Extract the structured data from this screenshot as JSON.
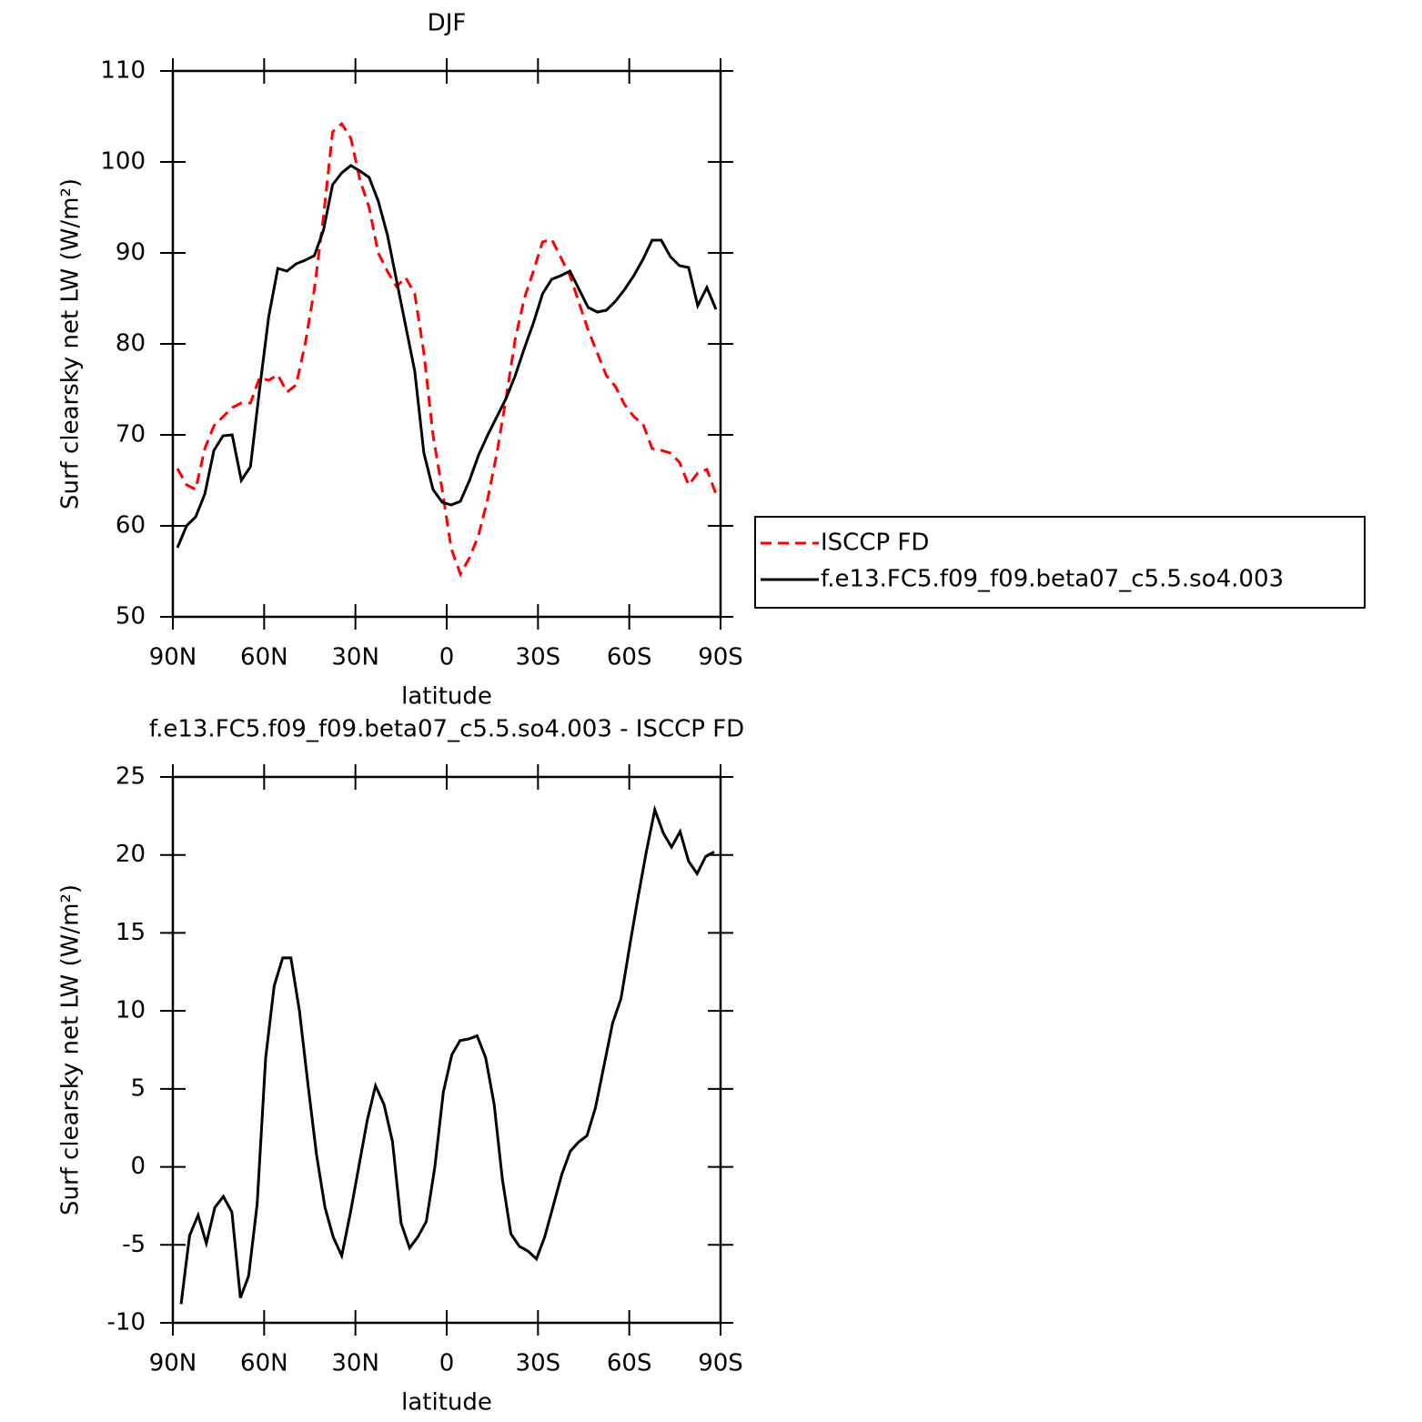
{
  "chart_data": [
    {
      "type": "line",
      "title": "DJF",
      "x_label": "latitude",
      "y_label": "Surf clearsky net LW (W/m²)",
      "x": [
        88.5,
        85.5,
        82.5,
        79.5,
        76.5,
        73.5,
        70.5,
        67.5,
        64.5,
        61.5,
        58.5,
        55.5,
        52.5,
        49.5,
        46.5,
        43.5,
        40.5,
        37.5,
        34.5,
        31.5,
        28.5,
        25.5,
        22.5,
        19.5,
        16.5,
        13.5,
        10.5,
        7.5,
        4.5,
        1.5,
        -1.5,
        -4.5,
        -7.5,
        -10.5,
        -13.5,
        -16.5,
        -19.5,
        -22.5,
        -25.5,
        -28.5,
        -31.5,
        -34.5,
        -37.5,
        -40.5,
        -43.5,
        -46.5,
        -49.5,
        -52.5,
        -55.5,
        -58.5,
        -61.5,
        -64.5,
        -67.5,
        -70.5,
        -73.5,
        -76.5,
        -79.5,
        -82.5,
        -85.5,
        -88.5
      ],
      "series": [
        {
          "name": "ISCCP FD",
          "color": "#ff0000",
          "line_style": "dashed",
          "values": [
            66.3,
            64.5,
            64,
            68.5,
            71,
            72,
            73,
            73.5,
            73.5,
            76.3,
            76,
            76.6,
            74.7,
            75.5,
            80,
            86,
            94,
            103.3,
            104.2,
            102.6,
            98,
            95,
            90,
            88,
            86.3,
            87.3,
            85.5,
            79,
            70,
            64,
            57.5,
            54.7,
            56.5,
            59,
            63,
            68,
            74,
            80.5,
            85,
            88,
            91.2,
            91.5,
            89.5,
            87.5,
            84.5,
            81.5,
            79,
            76.5,
            75.3,
            73.3,
            72,
            71.2,
            68.5,
            68.3,
            68,
            67,
            64.5,
            65.8,
            66.2,
            63.5
          ]
        },
        {
          "name": "f.e13.FC5.f09_f09.beta07_c5.5.so4.003",
          "color": "#000000",
          "line_style": "solid",
          "values": [
            57.6,
            60,
            61,
            63.5,
            68.3,
            69.9,
            70,
            65,
            66.5,
            75,
            83,
            88.3,
            88,
            88.8,
            89.2,
            89.7,
            92.5,
            97.5,
            98.8,
            99.6,
            99,
            98.3,
            95.7,
            92,
            87,
            82,
            77,
            68,
            64,
            62.6,
            62.3,
            62.7,
            65,
            67.8,
            70,
            72,
            74,
            76.5,
            79.5,
            82.3,
            85.5,
            87.1,
            87.5,
            88,
            86,
            84,
            83.5,
            83.7,
            84.7,
            86,
            87.5,
            89.3,
            91.4,
            91.4,
            89.6,
            88.6,
            88.4,
            84.2,
            86.2,
            83.8
          ]
        }
      ],
      "xlim": [
        90,
        -90
      ],
      "xticks": [
        {
          "value": 90,
          "label": "90N"
        },
        {
          "value": 60,
          "label": "60N"
        },
        {
          "value": 30,
          "label": "30N"
        },
        0,
        {
          "value": -30,
          "label": "30S"
        },
        {
          "value": -60,
          "label": "60S"
        },
        {
          "value": -90,
          "label": "90S"
        }
      ],
      "ylim": [
        50,
        110
      ],
      "yticks": [
        50,
        60,
        70,
        80,
        90,
        100,
        110
      ],
      "legend": "right"
    },
    {
      "type": "line",
      "title": "f.e13.FC5.f09_f09.beta07_c5.5.so4.003 - ISCCP FD",
      "x_label": "latitude",
      "y_label": "Surf clearsky net LW (W/m²)",
      "x": [
        87.3,
        84.5,
        81.7,
        79.0,
        76.2,
        73.4,
        70.6,
        67.8,
        65.1,
        62.3,
        59.5,
        56.7,
        53.9,
        51.2,
        48.4,
        45.6,
        42.8,
        40.0,
        37.3,
        34.5,
        31.7,
        28.9,
        26.1,
        23.4,
        20.6,
        17.8,
        15.0,
        12.2,
        9.5,
        6.7,
        3.9,
        1.1,
        -1.7,
        -4.4,
        -7.2,
        -10.0,
        -12.8,
        -15.6,
        -18.3,
        -21.1,
        -23.9,
        -26.7,
        -29.5,
        -32.2,
        -35.0,
        -37.8,
        -40.6,
        -43.4,
        -46.1,
        -48.9,
        -51.7,
        -54.5,
        -57.3,
        -60.0,
        -62.8,
        -65.6,
        -68.4,
        -71.2,
        -73.9,
        -76.7,
        -79.5,
        -82.3,
        -85.1,
        -87.9
      ],
      "series": [
        {
          "color": "#000000",
          "line_style": "solid",
          "values": [
            -8.8,
            -4.4,
            -3.1,
            -4.9,
            -2.6,
            -1.9,
            -2.9,
            -8.4,
            -7,
            -2.4,
            7,
            11.6,
            13.4,
            13.4,
            10,
            5.3,
            0.8,
            -2.6,
            -4.5,
            -5.7,
            -3,
            0,
            3,
            5.2,
            4,
            1.6,
            -3.6,
            -5.2,
            -4.5,
            -3.5,
            0,
            4.8,
            7.2,
            8.1,
            8.2,
            8.4,
            7,
            4,
            -0.8,
            -4.3,
            -5.1,
            -5.4,
            -5.9,
            -4.5,
            -2.5,
            -0.5,
            1,
            1.6,
            2,
            3.8,
            6.5,
            9.2,
            10.8,
            14,
            17.2,
            20.2,
            22.9,
            21.4,
            20.5,
            21.5,
            19.6,
            18.8,
            19.9,
            20.2
          ]
        }
      ],
      "xlim": [
        90,
        -90
      ],
      "xticks": [
        {
          "value": 90,
          "label": "90N"
        },
        {
          "value": 60,
          "label": "60N"
        },
        {
          "value": 30,
          "label": "30N"
        },
        0,
        {
          "value": -30,
          "label": "30S"
        },
        {
          "value": -60,
          "label": "60S"
        },
        {
          "value": -90,
          "label": "90S"
        }
      ],
      "ylim": [
        -10,
        25
      ],
      "yticks": [
        -10,
        -5,
        0,
        5,
        10,
        15,
        20,
        25
      ]
    }
  ]
}
